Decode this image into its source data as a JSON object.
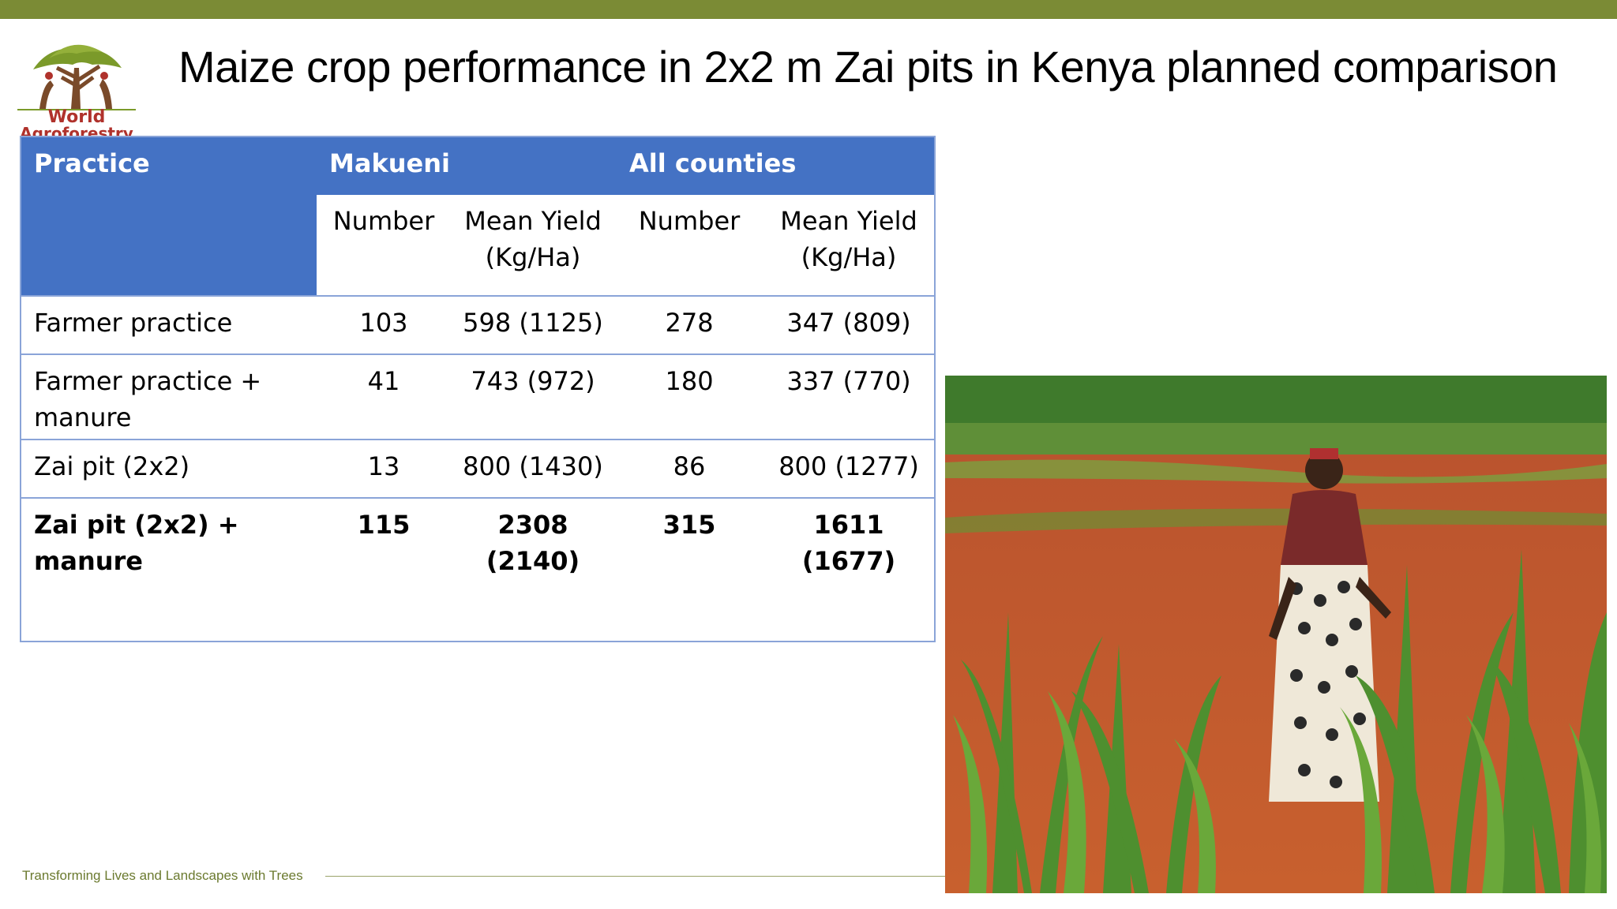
{
  "slide": {
    "title": "Maize crop performance in 2x2 m Zai pits in Kenya planned comparison",
    "footer": "Transforming Lives and Landscapes with Trees"
  },
  "logo": {
    "line1": "World",
    "line2": "Agroforestry",
    "tree_color": "#7b9a2a",
    "trunk_color": "#7a4a2a",
    "text_color": "#b0322c"
  },
  "table": {
    "header": {
      "practice": "Practice",
      "group1": "Makueni",
      "group2": "All counties",
      "col_number_1": "Number",
      "col_yield_1": "Mean Yield (Kg/Ha)",
      "col_number_2": "Number",
      "col_yield_2": "Mean Yield (Kg/Ha)"
    },
    "rows": [
      {
        "practice": "Farmer practice",
        "mak_number": "103",
        "mak_yield": "598 (1125)",
        "all_number": "278",
        "all_yield": "347 (809)"
      },
      {
        "practice": "Farmer practice + manure",
        "mak_number": "41",
        "mak_yield": "743 (972)",
        "all_number": "180",
        "all_yield": "337 (770)"
      },
      {
        "practice": "Zai pit (2x2)",
        "mak_number": "13",
        "mak_yield": "800 (1430)",
        "all_number": "86",
        "all_yield": "800 (1277)"
      },
      {
        "practice": "Zai pit (2x2) + manure",
        "mak_number": "115",
        "mak_yield": "2308 (2140)",
        "all_number": "315",
        "all_yield": "1611 (1677)"
      }
    ]
  },
  "colors": {
    "top_bar": "#7b8b35",
    "header_blue": "#4472c4",
    "table_border": "#8aa4d8",
    "footer_text": "#6b7a2f"
  }
}
